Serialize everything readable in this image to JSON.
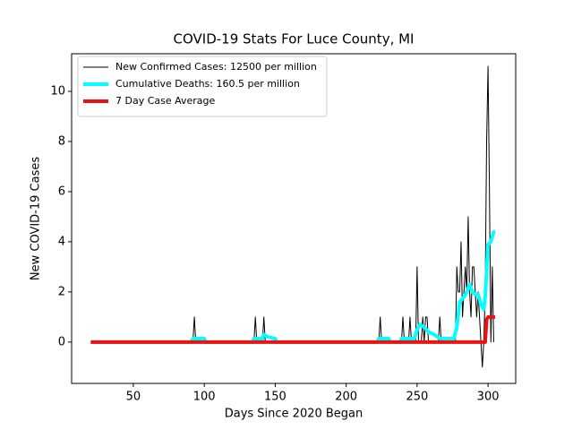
{
  "chart_data": {
    "type": "line",
    "title": "COVID-19 Stats For Luce County, MI",
    "x_label": "Days Since 2020 Began",
    "y_label": "New COVID-19 Cases",
    "xlim": [
      6.5,
      319.5
    ],
    "ylim": [
      -1.65,
      11.5
    ],
    "xticks": [
      50,
      100,
      150,
      200,
      250,
      300
    ],
    "yticks": [
      0,
      2,
      4,
      6,
      8,
      10
    ],
    "legend": "upper left",
    "series": [
      {
        "name": "New Confirmed Cases: 12500 per million",
        "color": "#000000",
        "width": 1,
        "x": [
          20,
          92,
          93,
          94,
          135,
          136,
          137,
          141,
          142,
          143,
          223,
          224,
          225,
          239,
          240,
          241,
          244,
          245,
          246,
          249,
          250,
          251,
          253,
          254,
          255,
          256,
          257,
          258,
          265,
          266,
          267,
          277,
          278,
          279,
          280,
          281,
          282,
          283,
          284,
          285,
          286,
          287,
          288,
          289,
          290,
          291,
          292,
          293,
          294,
          295,
          296,
          297,
          298,
          299,
          300,
          301,
          302,
          303,
          304
        ],
        "values": [
          0,
          0,
          1,
          0,
          0,
          1,
          0,
          0,
          1,
          0,
          0,
          1,
          0,
          0,
          1,
          0,
          0,
          1,
          0,
          0,
          3,
          0,
          0,
          1,
          0,
          1,
          1,
          0,
          0,
          1,
          0,
          0,
          3,
          2,
          2,
          4,
          1,
          2,
          3,
          2,
          5,
          2,
          1,
          3,
          3,
          2,
          1,
          2,
          1,
          0,
          -1,
          0,
          2,
          8,
          11,
          6,
          0,
          3,
          0
        ]
      },
      {
        "name": "Cumulative Deaths: 160.5 per million",
        "color": "#00ffff",
        "width": 4,
        "x": [
          20,
          91,
          92,
          100,
          101,
          134,
          135,
          141,
          142,
          145,
          150,
          151,
          222,
          223,
          230,
          231,
          238,
          239,
          248,
          250,
          252,
          255,
          258,
          262,
          266,
          276,
          278,
          280,
          283,
          285,
          287,
          289,
          291,
          293,
          295,
          297,
          298,
          299,
          300,
          302,
          304,
          305
        ],
        "values": [
          0,
          0,
          0.14,
          0.14,
          0,
          0,
          0.14,
          0.14,
          0.3,
          0.2,
          0.14,
          0,
          0,
          0.14,
          0.14,
          0,
          0,
          0.14,
          0.14,
          0.5,
          0.7,
          0.6,
          0.4,
          0.3,
          0.14,
          0.14,
          0.6,
          1.6,
          1.8,
          2.0,
          2.3,
          2.0,
          1.9,
          1.9,
          1.5,
          1.3,
          1.8,
          2.8,
          3.9,
          4.0,
          4.4,
          4.4
        ]
      },
      {
        "name": "7 Day Case Average",
        "color": "#ee1111",
        "width": 4,
        "x": [
          20,
          298,
          299,
          300,
          305
        ],
        "values": [
          0,
          0,
          0.9,
          1,
          1
        ]
      }
    ]
  }
}
